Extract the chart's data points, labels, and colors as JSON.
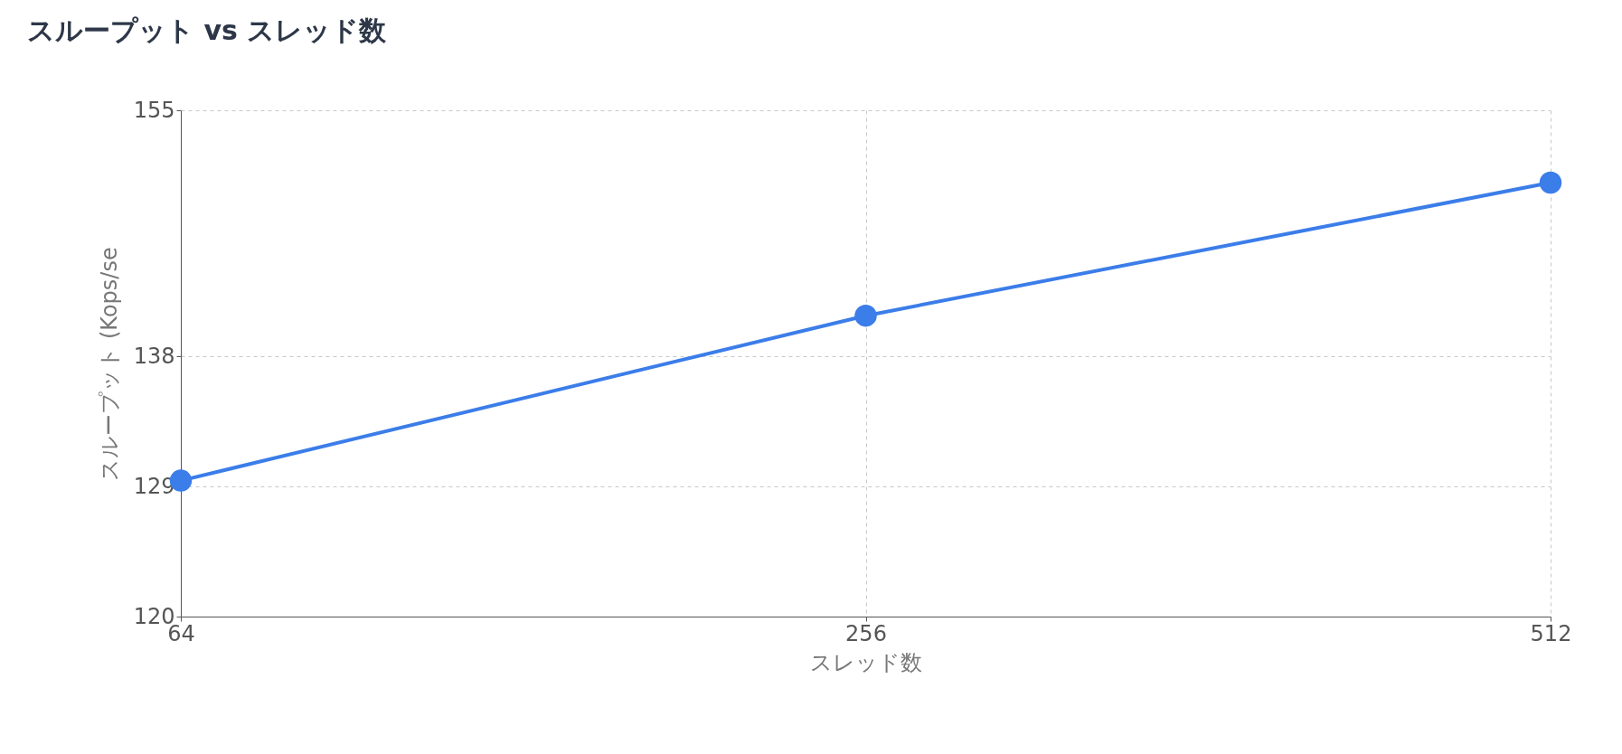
{
  "chart_data": {
    "type": "line",
    "title": "スループット vs スレッド数",
    "xlabel": "スレッド数",
    "ylabel": "スループット (Kops/se",
    "categories": [
      "64",
      "256",
      "512"
    ],
    "series": [
      {
        "color": "#3b7de9",
        "values": [
          129.4,
          140.8,
          150.0
        ]
      }
    ],
    "ylim": [
      120,
      155
    ],
    "yticks": [
      120,
      129,
      138,
      155
    ],
    "grid": true,
    "marker": "circle",
    "line_style": "solid"
  }
}
